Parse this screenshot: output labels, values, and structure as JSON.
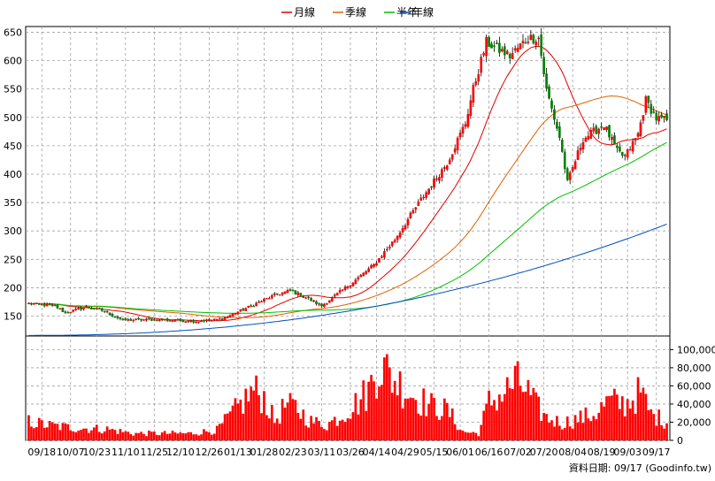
{
  "chart_data": {
    "type": "candlestick",
    "legend": [
      {
        "name": "月線",
        "color": "#e00000"
      },
      {
        "name": "季線",
        "color": "#e06000"
      },
      {
        "name": "半年",
        "color": "#00c000"
      },
      {
        "name": "年線",
        "color": "#0050c0"
      }
    ],
    "price_axis": {
      "ticks": [
        150,
        200,
        250,
        300,
        350,
        400,
        450,
        500,
        550,
        600,
        650
      ],
      "ylim": [
        115,
        660
      ]
    },
    "volume_axis": {
      "ticks": [
        "0",
        "20,000",
        "40,000",
        "60,000",
        "80,000",
        "100,000"
      ],
      "ylim": [
        0,
        115000
      ]
    },
    "x_labels": [
      "09/18",
      "10/07",
      "10/23",
      "11/10",
      "11/25",
      "12/10",
      "12/26",
      "01/13",
      "01/28",
      "02/23",
      "03/11",
      "03/26",
      "04/14",
      "04/29",
      "05/15",
      "06/01",
      "06/16",
      "07/02",
      "07/20",
      "08/04",
      "08/19",
      "09/03",
      "09/17"
    ],
    "footer": "資料日期: 09/17  (Goodinfo.tw)",
    "colors": {
      "up": "#ff0000",
      "down": "#008000",
      "volume": "#ff0000",
      "grid": "#a0a0a0",
      "neutral": "#000000"
    },
    "price_knots": [
      [
        0,
        172
      ],
      [
        10,
        168
      ],
      [
        14,
        156
      ],
      [
        22,
        166
      ],
      [
        28,
        160
      ],
      [
        36,
        143
      ],
      [
        48,
        144
      ],
      [
        64,
        141
      ],
      [
        74,
        145
      ],
      [
        86,
        170
      ],
      [
        94,
        187
      ],
      [
        100,
        195
      ],
      [
        106,
        183
      ],
      [
        112,
        168
      ],
      [
        124,
        210
      ],
      [
        132,
        240
      ],
      [
        140,
        285
      ],
      [
        150,
        355
      ],
      [
        160,
        420
      ],
      [
        167,
        490
      ],
      [
        170,
        550
      ],
      [
        175,
        632
      ],
      [
        184,
        608
      ],
      [
        191,
        640
      ],
      [
        195,
        640
      ],
      [
        198,
        548
      ],
      [
        203,
        465
      ],
      [
        206,
        385
      ],
      [
        212,
        462
      ],
      [
        220,
        487
      ],
      [
        225,
        440
      ],
      [
        228,
        430
      ],
      [
        233,
        470
      ],
      [
        236,
        530
      ],
      [
        240,
        498
      ],
      [
        244,
        495
      ]
    ],
    "volume_knots": [
      [
        0,
        22000
      ],
      [
        6,
        18000
      ],
      [
        12,
        16000
      ],
      [
        20,
        14000
      ],
      [
        30,
        13000
      ],
      [
        40,
        8000
      ],
      [
        50,
        8000
      ],
      [
        62,
        8000
      ],
      [
        72,
        12000
      ],
      [
        80,
        38000
      ],
      [
        86,
        58000
      ],
      [
        90,
        50000
      ],
      [
        94,
        22000
      ],
      [
        98,
        40000
      ],
      [
        102,
        38000
      ],
      [
        108,
        22000
      ],
      [
        114,
        18000
      ],
      [
        120,
        30000
      ],
      [
        126,
        45000
      ],
      [
        130,
        58000
      ],
      [
        134,
        90000
      ],
      [
        138,
        75000
      ],
      [
        142,
        65000
      ],
      [
        148,
        50000
      ],
      [
        154,
        40000
      ],
      [
        160,
        35000
      ],
      [
        166,
        10000
      ],
      [
        172,
        8000
      ],
      [
        176,
        44000
      ],
      [
        182,
        55000
      ],
      [
        186,
        68000
      ],
      [
        190,
        60000
      ],
      [
        194,
        40000
      ],
      [
        198,
        26000
      ],
      [
        204,
        20000
      ],
      [
        210,
        25000
      ],
      [
        216,
        30000
      ],
      [
        222,
        45000
      ],
      [
        228,
        42000
      ],
      [
        234,
        55000
      ],
      [
        238,
        30000
      ],
      [
        244,
        22000
      ]
    ]
  }
}
